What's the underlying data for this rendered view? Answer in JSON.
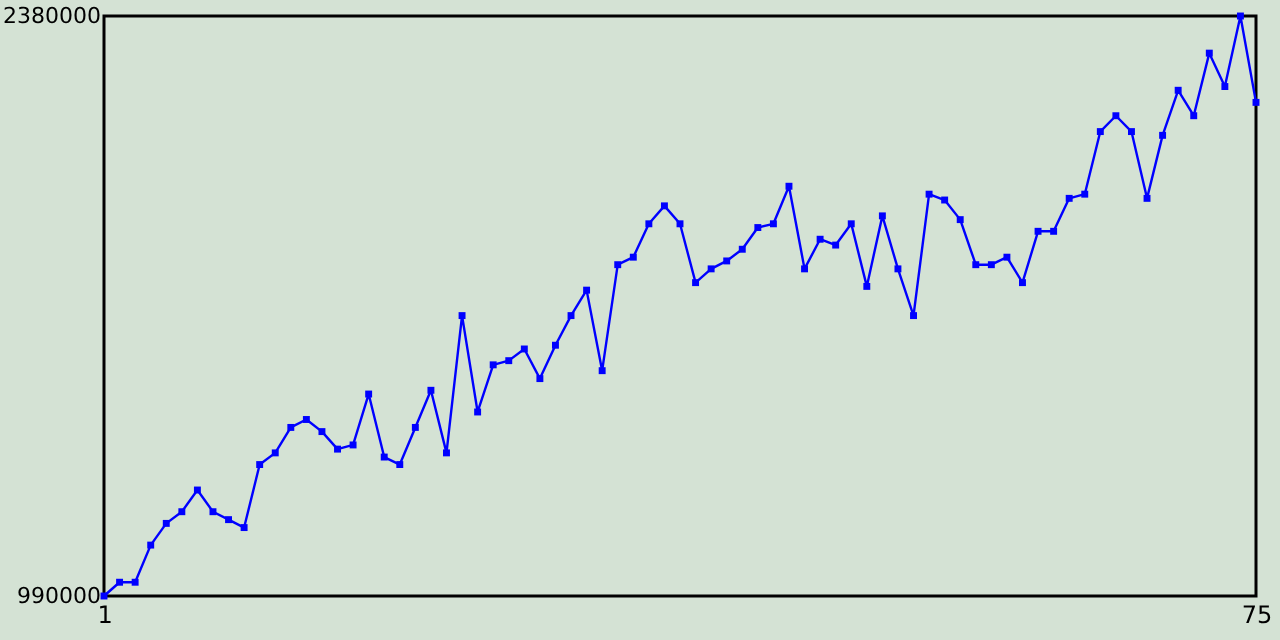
{
  "chart_data": {
    "type": "line",
    "x": [
      1,
      2,
      3,
      4,
      5,
      6,
      7,
      8,
      9,
      10,
      11,
      12,
      13,
      14,
      15,
      16,
      17,
      18,
      19,
      20,
      21,
      22,
      23,
      24,
      25,
      26,
      27,
      28,
      29,
      30,
      31,
      32,
      33,
      34,
      35,
      36,
      37,
      38,
      39,
      40,
      41,
      42,
      43,
      44,
      45,
      46,
      47,
      48,
      49,
      50,
      51,
      52,
      53,
      54,
      55,
      56,
      57,
      58,
      59,
      60,
      61,
      62,
      63,
      64,
      65,
      66,
      67,
      68,
      69,
      70,
      71,
      72,
      73,
      74,
      75
    ],
    "series": [
      {
        "color": "#0000ff",
        "values": [
          990000,
          1023000,
          1023000,
          1112000,
          1164000,
          1192000,
          1244000,
          1192000,
          1173000,
          1154000,
          1305000,
          1333000,
          1394000,
          1413000,
          1384000,
          1342000,
          1352000,
          1474000,
          1323000,
          1305000,
          1394000,
          1483000,
          1333000,
          1662000,
          1431000,
          1544000,
          1554000,
          1582000,
          1511000,
          1591000,
          1662000,
          1723000,
          1530000,
          1784000,
          1802000,
          1882000,
          1925000,
          1882000,
          1741000,
          1774000,
          1793000,
          1821000,
          1873000,
          1882000,
          1972000,
          1774000,
          1845000,
          1831000,
          1882000,
          1732000,
          1901000,
          1774000,
          1662000,
          1953000,
          1939000,
          1892000,
          1784000,
          1784000,
          1802000,
          1741000,
          1864000,
          1864000,
          1943000,
          1953000,
          2103000,
          2141000,
          2103000,
          1943000,
          2094000,
          2202000,
          2141000,
          2291000,
          2211000,
          2380000,
          2173000
        ]
      }
    ],
    "xlim": [
      1,
      75
    ],
    "xticks": [
      1,
      75
    ],
    "ylim": [
      990000,
      2380000
    ],
    "yticks": [
      990000,
      2380000
    ],
    "grid": false,
    "marker": "square",
    "line_style": "solid"
  }
}
